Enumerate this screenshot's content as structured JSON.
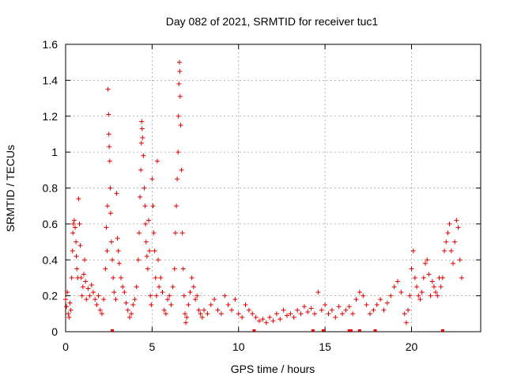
{
  "chart_data": {
    "type": "scatter",
    "title": "Day 082 of 2021, SRMTID for receiver tuc1",
    "xlabel": "GPS time / hours",
    "ylabel": "SRMTID / TECUs",
    "xlim": [
      0,
      24
    ],
    "ylim": [
      0,
      1.6
    ],
    "x_ticks": [
      0,
      5,
      10,
      15,
      20
    ],
    "x_tick_labels": [
      "0",
      "5",
      "10",
      "15",
      "20"
    ],
    "y_ticks": [
      0,
      0.2,
      0.4,
      0.6,
      0.8,
      1.0,
      1.2,
      1.4,
      1.6
    ],
    "y_tick_labels": [
      "0",
      "0.2",
      "0.4",
      "0.6",
      "0.8",
      "1",
      "1.2",
      "1.4",
      "1.6"
    ],
    "grid": true,
    "marker": "plus",
    "marker_color": "#e00000",
    "series": [
      {
        "name": "SRMTID",
        "points": [
          [
            0.0,
            0.18
          ],
          [
            0.05,
            0.14
          ],
          [
            0.1,
            0.22
          ],
          [
            0.15,
            0.1
          ],
          [
            0.2,
            0.08
          ],
          [
            0.25,
            0.16
          ],
          [
            0.3,
            0.12
          ],
          [
            0.35,
            0.3
          ],
          [
            0.4,
            0.45
          ],
          [
            0.42,
            0.55
          ],
          [
            0.45,
            0.6
          ],
          [
            0.5,
            0.62
          ],
          [
            0.55,
            0.58
          ],
          [
            0.6,
            0.5
          ],
          [
            0.62,
            0.42
          ],
          [
            0.65,
            0.35
          ],
          [
            0.7,
            0.3
          ],
          [
            0.75,
            0.74
          ],
          [
            0.8,
            0.6
          ],
          [
            0.85,
            0.48
          ],
          [
            0.9,
            0.3
          ],
          [
            0.95,
            0.2
          ],
          [
            1.0,
            0.25
          ],
          [
            1.05,
            0.32
          ],
          [
            1.1,
            0.4
          ],
          [
            1.15,
            0.28
          ],
          [
            1.2,
            0.18
          ],
          [
            1.3,
            0.24
          ],
          [
            1.4,
            0.2
          ],
          [
            1.5,
            0.26
          ],
          [
            1.6,
            0.22
          ],
          [
            1.7,
            0.18
          ],
          [
            1.8,
            0.15
          ],
          [
            1.9,
            0.2
          ],
          [
            2.0,
            0.12
          ],
          [
            2.1,
            0.1
          ],
          [
            2.2,
            0.18
          ],
          [
            2.3,
            0.35
          ],
          [
            2.35,
            0.58
          ],
          [
            2.4,
            0.45
          ],
          [
            2.42,
            0.7
          ],
          [
            2.45,
            1.35
          ],
          [
            2.48,
            1.21
          ],
          [
            2.5,
            1.1
          ],
          [
            2.52,
            1.03
          ],
          [
            2.55,
            0.95
          ],
          [
            2.58,
            0.8
          ],
          [
            2.6,
            0.66
          ],
          [
            2.65,
            0.5
          ],
          [
            2.7,
            0.4
          ],
          [
            2.75,
            0.3
          ],
          [
            2.8,
            0.22
          ],
          [
            2.9,
            0.18
          ],
          [
            2.95,
            0.77
          ],
          [
            3.0,
            0.52
          ],
          [
            3.05,
            0.45
          ],
          [
            3.1,
            0.38
          ],
          [
            3.2,
            0.3
          ],
          [
            3.3,
            0.25
          ],
          [
            3.4,
            0.22
          ],
          [
            3.5,
            0.16
          ],
          [
            3.6,
            0.12
          ],
          [
            3.7,
            0.08
          ],
          [
            3.8,
            0.1
          ],
          [
            3.9,
            0.15
          ],
          [
            4.0,
            0.18
          ],
          [
            4.1,
            0.25
          ],
          [
            4.2,
            0.4
          ],
          [
            4.25,
            0.55
          ],
          [
            4.3,
            0.75
          ],
          [
            4.35,
            0.9
          ],
          [
            4.38,
            1.05
          ],
          [
            4.4,
            1.17
          ],
          [
            4.42,
            1.13
          ],
          [
            4.45,
            1.08
          ],
          [
            4.5,
            0.98
          ],
          [
            4.55,
            0.8
          ],
          [
            4.6,
            0.7
          ],
          [
            4.62,
            0.6
          ],
          [
            4.65,
            0.5
          ],
          [
            4.7,
            0.42
          ],
          [
            4.75,
            0.35
          ],
          [
            4.8,
            0.62
          ],
          [
            4.85,
            0.45
          ],
          [
            4.9,
            0.2
          ],
          [
            4.95,
            0.15
          ],
          [
            5.0,
            0.85
          ],
          [
            5.05,
            0.7
          ],
          [
            5.1,
            0.55
          ],
          [
            5.15,
            0.45
          ],
          [
            5.2,
            0.3
          ],
          [
            5.25,
            0.2
          ],
          [
            5.3,
            0.95
          ],
          [
            5.35,
            0.4
          ],
          [
            5.4,
            0.25
          ],
          [
            5.5,
            0.3
          ],
          [
            5.6,
            0.22
          ],
          [
            5.7,
            0.12
          ],
          [
            5.8,
            0.1
          ],
          [
            5.9,
            0.18
          ],
          [
            6.0,
            0.2
          ],
          [
            6.1,
            0.15
          ],
          [
            6.2,
            0.25
          ],
          [
            6.3,
            0.35
          ],
          [
            6.35,
            0.55
          ],
          [
            6.4,
            0.7
          ],
          [
            6.45,
            0.85
          ],
          [
            6.5,
            1.0
          ],
          [
            6.52,
            1.2
          ],
          [
            6.55,
            1.38
          ],
          [
            6.58,
            1.5
          ],
          [
            6.6,
            1.45
          ],
          [
            6.62,
            1.31
          ],
          [
            6.65,
            1.15
          ],
          [
            6.7,
            0.9
          ],
          [
            6.75,
            0.55
          ],
          [
            6.8,
            0.35
          ],
          [
            6.85,
            0.2
          ],
          [
            6.9,
            0.1
          ],
          [
            6.95,
            0.05
          ],
          [
            7.0,
            0.08
          ],
          [
            7.1,
            0.15
          ],
          [
            7.2,
            0.22
          ],
          [
            7.3,
            0.3
          ],
          [
            7.4,
            0.25
          ],
          [
            7.5,
            0.18
          ],
          [
            7.6,
            0.2
          ],
          [
            7.7,
            0.12
          ],
          [
            7.8,
            0.1
          ],
          [
            7.9,
            0.08
          ],
          [
            8.0,
            0.12
          ],
          [
            8.2,
            0.1
          ],
          [
            8.4,
            0.15
          ],
          [
            8.6,
            0.18
          ],
          [
            8.8,
            0.12
          ],
          [
            9.0,
            0.1
          ],
          [
            9.2,
            0.2
          ],
          [
            9.4,
            0.15
          ],
          [
            9.6,
            0.12
          ],
          [
            9.8,
            0.18
          ],
          [
            10.0,
            0.1
          ],
          [
            10.2,
            0.08
          ],
          [
            10.4,
            0.15
          ],
          [
            10.6,
            0.12
          ],
          [
            10.8,
            0.1
          ],
          [
            11.0,
            0.08
          ],
          [
            11.2,
            0.06
          ],
          [
            11.4,
            0.07
          ],
          [
            11.6,
            0.05
          ],
          [
            11.8,
            0.08
          ],
          [
            12.0,
            0.06
          ],
          [
            12.2,
            0.1
          ],
          [
            12.4,
            0.07
          ],
          [
            12.6,
            0.12
          ],
          [
            12.8,
            0.09
          ],
          [
            13.0,
            0.1
          ],
          [
            13.2,
            0.08
          ],
          [
            13.4,
            0.12
          ],
          [
            13.6,
            0.1
          ],
          [
            13.8,
            0.14
          ],
          [
            14.0,
            0.11
          ],
          [
            14.2,
            0.13
          ],
          [
            14.4,
            0.1
          ],
          [
            14.6,
            0.22
          ],
          [
            14.8,
            0.12
          ],
          [
            15.0,
            0.15
          ],
          [
            15.2,
            0.1
          ],
          [
            15.4,
            0.12
          ],
          [
            15.6,
            0.08
          ],
          [
            15.8,
            0.14
          ],
          [
            16.0,
            0.1
          ],
          [
            16.2,
            0.12
          ],
          [
            16.4,
            0.14
          ],
          [
            16.6,
            0.1
          ],
          [
            16.8,
            0.18
          ],
          [
            17.0,
            0.22
          ],
          [
            17.2,
            0.2
          ],
          [
            17.4,
            0.15
          ],
          [
            17.6,
            0.1
          ],
          [
            17.8,
            0.12
          ],
          [
            18.0,
            0.15
          ],
          [
            18.2,
            0.18
          ],
          [
            18.4,
            0.12
          ],
          [
            18.6,
            0.16
          ],
          [
            18.8,
            0.2
          ],
          [
            19.0,
            0.25
          ],
          [
            19.2,
            0.28
          ],
          [
            19.4,
            0.22
          ],
          [
            19.6,
            0.1
          ],
          [
            19.7,
            0.05
          ],
          [
            19.8,
            0.12
          ],
          [
            19.9,
            0.2
          ],
          [
            20.0,
            0.35
          ],
          [
            20.1,
            0.45
          ],
          [
            20.2,
            0.3
          ],
          [
            20.3,
            0.25
          ],
          [
            20.4,
            0.2
          ],
          [
            20.5,
            0.18
          ],
          [
            20.6,
            0.22
          ],
          [
            20.7,
            0.3
          ],
          [
            20.8,
            0.38
          ],
          [
            20.9,
            0.4
          ],
          [
            21.0,
            0.32
          ],
          [
            21.1,
            0.2
          ],
          [
            21.2,
            0.28
          ],
          [
            21.3,
            0.25
          ],
          [
            21.4,
            0.22
          ],
          [
            21.5,
            0.2
          ],
          [
            21.6,
            0.3
          ],
          [
            21.7,
            0.25
          ],
          [
            21.8,
            0.3
          ],
          [
            21.9,
            0.45
          ],
          [
            22.0,
            0.5
          ],
          [
            22.1,
            0.55
          ],
          [
            22.2,
            0.6
          ],
          [
            22.3,
            0.45
          ],
          [
            22.4,
            0.38
          ],
          [
            22.5,
            0.5
          ],
          [
            22.6,
            0.62
          ],
          [
            22.7,
            0.58
          ],
          [
            22.8,
            0.4
          ],
          [
            22.9,
            0.3
          ]
        ]
      }
    ],
    "zero_points_x": [
      2.7,
      10.9,
      14.3,
      14.9,
      16.4,
      16.5,
      17.0,
      17.9,
      21.8
    ]
  }
}
